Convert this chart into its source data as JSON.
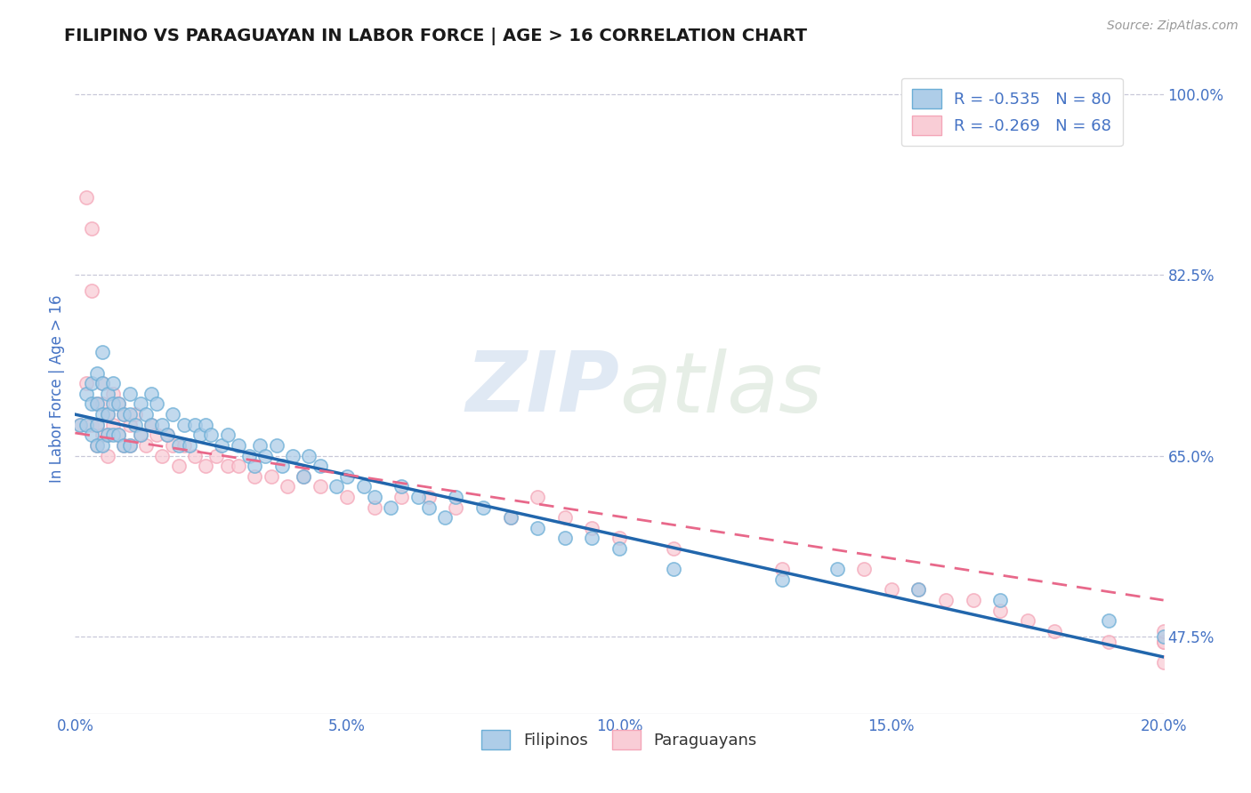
{
  "title": "FILIPINO VS PARAGUAYAN IN LABOR FORCE | AGE > 16 CORRELATION CHART",
  "source": "Source: ZipAtlas.com",
  "ylabel": "In Labor Force | Age > 16",
  "x_min": 0.0,
  "x_max": 0.2,
  "y_min": 0.4,
  "y_max": 1.03,
  "yticks": [
    0.475,
    0.65,
    0.825,
    1.0
  ],
  "ytick_labels": [
    "47.5%",
    "65.0%",
    "82.5%",
    "100.0%"
  ],
  "xticks": [
    0.0,
    0.05,
    0.1,
    0.15,
    0.2
  ],
  "xtick_labels": [
    "0.0%",
    "5.0%",
    "10.0%",
    "15.0%",
    "20.0%"
  ],
  "legend_r1": "R = -0.535   N = 80",
  "legend_r2": "R = -0.269   N = 68",
  "watermark_zip": "ZIP",
  "watermark_atlas": "atlas",
  "blue_color": "#6baed6",
  "blue_fill": "#aecde8",
  "pink_color": "#f4a6b8",
  "pink_fill": "#f9cdd6",
  "line_blue": "#2166ac",
  "line_pink": "#e8688a",
  "tick_color": "#4472c4",
  "blue_scatter": {
    "x": [
      0.001,
      0.002,
      0.002,
      0.003,
      0.003,
      0.003,
      0.004,
      0.004,
      0.004,
      0.004,
      0.005,
      0.005,
      0.005,
      0.005,
      0.006,
      0.006,
      0.006,
      0.007,
      0.007,
      0.007,
      0.008,
      0.008,
      0.009,
      0.009,
      0.01,
      0.01,
      0.01,
      0.011,
      0.012,
      0.012,
      0.013,
      0.014,
      0.014,
      0.015,
      0.016,
      0.017,
      0.018,
      0.019,
      0.02,
      0.021,
      0.022,
      0.023,
      0.024,
      0.025,
      0.027,
      0.028,
      0.03,
      0.032,
      0.033,
      0.034,
      0.035,
      0.037,
      0.038,
      0.04,
      0.042,
      0.043,
      0.045,
      0.048,
      0.05,
      0.053,
      0.055,
      0.058,
      0.06,
      0.063,
      0.065,
      0.068,
      0.07,
      0.075,
      0.08,
      0.085,
      0.09,
      0.095,
      0.1,
      0.11,
      0.13,
      0.14,
      0.155,
      0.17,
      0.19,
      0.2
    ],
    "y": [
      0.68,
      0.71,
      0.68,
      0.72,
      0.7,
      0.67,
      0.73,
      0.7,
      0.68,
      0.66,
      0.75,
      0.72,
      0.69,
      0.66,
      0.71,
      0.69,
      0.67,
      0.72,
      0.7,
      0.67,
      0.7,
      0.67,
      0.69,
      0.66,
      0.71,
      0.69,
      0.66,
      0.68,
      0.7,
      0.67,
      0.69,
      0.71,
      0.68,
      0.7,
      0.68,
      0.67,
      0.69,
      0.66,
      0.68,
      0.66,
      0.68,
      0.67,
      0.68,
      0.67,
      0.66,
      0.67,
      0.66,
      0.65,
      0.64,
      0.66,
      0.65,
      0.66,
      0.64,
      0.65,
      0.63,
      0.65,
      0.64,
      0.62,
      0.63,
      0.62,
      0.61,
      0.6,
      0.62,
      0.61,
      0.6,
      0.59,
      0.61,
      0.6,
      0.59,
      0.58,
      0.57,
      0.57,
      0.56,
      0.54,
      0.53,
      0.54,
      0.52,
      0.51,
      0.49,
      0.475
    ]
  },
  "pink_scatter": {
    "x": [
      0.001,
      0.002,
      0.002,
      0.003,
      0.003,
      0.003,
      0.004,
      0.004,
      0.004,
      0.005,
      0.005,
      0.005,
      0.006,
      0.006,
      0.006,
      0.007,
      0.007,
      0.008,
      0.008,
      0.009,
      0.009,
      0.01,
      0.01,
      0.011,
      0.012,
      0.013,
      0.014,
      0.015,
      0.016,
      0.017,
      0.018,
      0.019,
      0.02,
      0.022,
      0.024,
      0.026,
      0.028,
      0.03,
      0.033,
      0.036,
      0.039,
      0.042,
      0.045,
      0.05,
      0.055,
      0.06,
      0.065,
      0.07,
      0.08,
      0.085,
      0.09,
      0.095,
      0.1,
      0.11,
      0.13,
      0.145,
      0.15,
      0.155,
      0.16,
      0.165,
      0.17,
      0.175,
      0.18,
      0.19,
      0.2,
      0.2,
      0.2,
      0.2
    ],
    "y": [
      0.68,
      0.9,
      0.72,
      0.87,
      0.81,
      0.68,
      0.7,
      0.68,
      0.66,
      0.72,
      0.7,
      0.67,
      0.69,
      0.67,
      0.65,
      0.71,
      0.68,
      0.7,
      0.67,
      0.69,
      0.66,
      0.68,
      0.66,
      0.69,
      0.67,
      0.66,
      0.68,
      0.67,
      0.65,
      0.67,
      0.66,
      0.64,
      0.66,
      0.65,
      0.64,
      0.65,
      0.64,
      0.64,
      0.63,
      0.63,
      0.62,
      0.63,
      0.62,
      0.61,
      0.6,
      0.61,
      0.61,
      0.6,
      0.59,
      0.61,
      0.59,
      0.58,
      0.57,
      0.56,
      0.54,
      0.54,
      0.52,
      0.52,
      0.51,
      0.51,
      0.5,
      0.49,
      0.48,
      0.47,
      0.47,
      0.47,
      0.48,
      0.45
    ]
  },
  "blue_line": {
    "x0": 0.0,
    "x1": 0.2,
    "y0": 0.69,
    "y1": 0.455
  },
  "pink_line": {
    "x0": 0.0,
    "x1": 0.2,
    "y0": 0.672,
    "y1": 0.51
  }
}
